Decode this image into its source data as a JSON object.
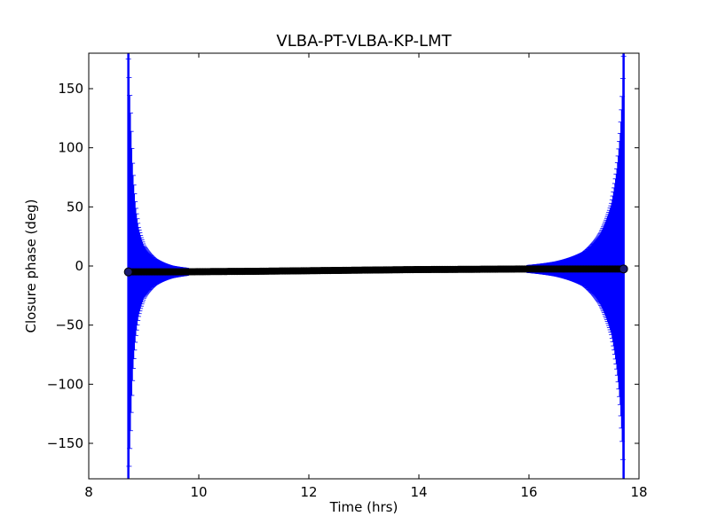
{
  "chart_data": {
    "type": "scatter",
    "title": "VLBA-PT-VLBA-KP-LMT",
    "xlabel": "Time (hrs)",
    "ylabel": "Closure phase (deg)",
    "xlim": [
      8,
      18
    ],
    "ylim": [
      -180,
      180
    ],
    "xticks": [
      8,
      10,
      12,
      14,
      16,
      18
    ],
    "yticks": [
      -150,
      -100,
      -50,
      0,
      50,
      100,
      150
    ],
    "xtick_labels": [
      "8",
      "10",
      "12",
      "14",
      "16",
      "18"
    ],
    "ytick_labels": [
      "−150",
      "−100",
      "−50",
      "0",
      "50",
      "100",
      "150"
    ],
    "grid": false,
    "legend": "none",
    "series": [
      {
        "marker": "circle",
        "color": "#000000",
        "error_bar_color": "#0000ff",
        "x_start": 8.72,
        "x_end": 17.72,
        "points": [
          {
            "x": 8.72,
            "y": -5.0,
            "yerr": 180
          },
          {
            "x": 8.74,
            "y": -5.0,
            "yerr": 155
          },
          {
            "x": 8.76,
            "y": -5.0,
            "yerr": 130
          },
          {
            "x": 8.78,
            "y": -5.0,
            "yerr": 105
          },
          {
            "x": 8.8,
            "y": -5.0,
            "yerr": 85
          },
          {
            "x": 8.85,
            "y": -5.0,
            "yerr": 55
          },
          {
            "x": 8.9,
            "y": -5.0,
            "yerr": 38
          },
          {
            "x": 9.0,
            "y": -5.0,
            "yerr": 22
          },
          {
            "x": 9.2,
            "y": -5.0,
            "yerr": 11
          },
          {
            "x": 9.5,
            "y": -5.0,
            "yerr": 5
          },
          {
            "x": 10.0,
            "y": -4.8,
            "yerr": 2
          },
          {
            "x": 11.0,
            "y": -4.5,
            "yerr": 1
          },
          {
            "x": 12.0,
            "y": -4.0,
            "yerr": 1
          },
          {
            "x": 13.0,
            "y": -3.5,
            "yerr": 1
          },
          {
            "x": 14.0,
            "y": -3.0,
            "yerr": 1
          },
          {
            "x": 15.0,
            "y": -2.8,
            "yerr": 1
          },
          {
            "x": 16.0,
            "y": -2.5,
            "yerr": 3
          },
          {
            "x": 16.5,
            "y": -2.5,
            "yerr": 6
          },
          {
            "x": 17.0,
            "y": -2.5,
            "yerr": 14
          },
          {
            "x": 17.3,
            "y": -2.5,
            "yerr": 30
          },
          {
            "x": 17.5,
            "y": -2.5,
            "yerr": 55
          },
          {
            "x": 17.6,
            "y": -2.5,
            "yerr": 85
          },
          {
            "x": 17.66,
            "y": -2.5,
            "yerr": 115
          },
          {
            "x": 17.7,
            "y": -2.5,
            "yerr": 150
          },
          {
            "x": 17.72,
            "y": -2.5,
            "yerr": 180
          }
        ]
      }
    ]
  }
}
